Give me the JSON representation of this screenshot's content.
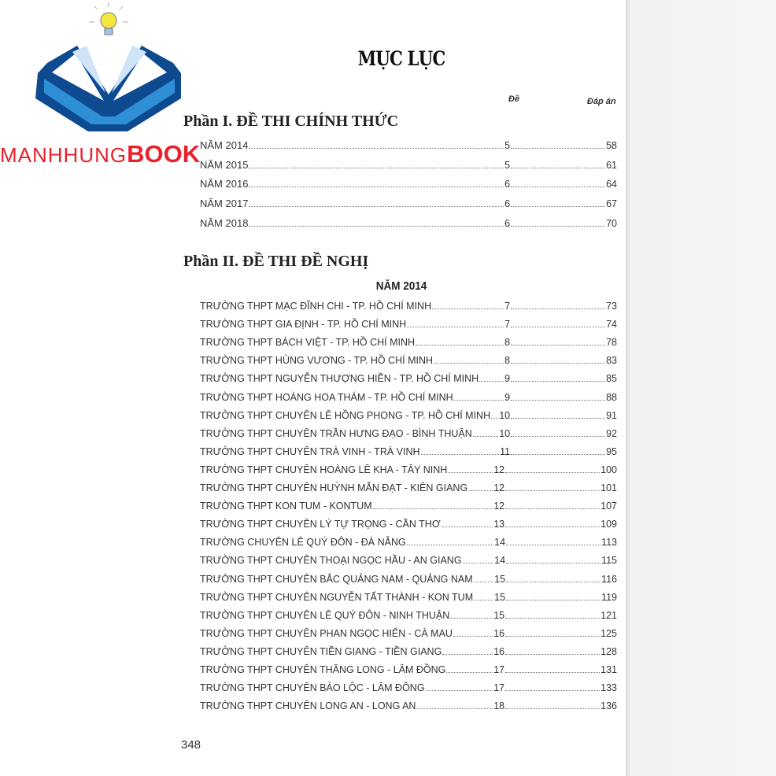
{
  "logo": {
    "text": "MANHHUNGBOOK",
    "part1": "MANHHUNG",
    "part2": "BOOK",
    "colors": {
      "blue_dark": "#0d4a8f",
      "blue_light": "#2f8fd6",
      "red": "#e8222d",
      "bulb": "#f5e642"
    }
  },
  "title": "MỤC LỤC",
  "columns": {
    "de": "Đề",
    "dap_an": "Đáp án"
  },
  "part1": {
    "heading": "Phần I. ĐỀ THI CHÍNH THỨC",
    "rows": [
      {
        "name": "NĂM 2014",
        "de": "5",
        "dap_an": "58"
      },
      {
        "name": "NĂM 2015",
        "de": "5",
        "dap_an": "61"
      },
      {
        "name": "NĂM 2016",
        "de": "6",
        "dap_an": "64"
      },
      {
        "name": "NĂM 2017",
        "de": "6",
        "dap_an": "67"
      },
      {
        "name": "NĂM 2018",
        "de": "6",
        "dap_an": "70"
      }
    ]
  },
  "part2": {
    "heading": "Phần II. ĐỀ THI ĐỀ NGHỊ",
    "year": "NĂM 2014",
    "rows": [
      {
        "name": "TRƯỜNG THPT MẠC ĐĨNH CHI - TP. HỒ CHÍ MINH",
        "de": "7",
        "dap_an": "73"
      },
      {
        "name": "TRƯỜNG THPT GIA ĐỊNH - TP. HỒ CHÍ MINH",
        "de": "7",
        "dap_an": "74"
      },
      {
        "name": "TRƯỜNG THPT BÁCH VIỆT - TP. HỒ CHÍ MINH",
        "de": "8",
        "dap_an": "78"
      },
      {
        "name": "TRƯỜNG THPT HÙNG VƯƠNG - TP. HỒ CHÍ MINH",
        "de": "8",
        "dap_an": "83"
      },
      {
        "name": "TRƯỜNG THPT NGUYỄN THƯỢNG HIỀN - TP. HỒ CHÍ MINH",
        "de": "9",
        "dap_an": "85"
      },
      {
        "name": "TRƯỜNG THPT HOÀNG HOA THÁM - TP. HỒ CHÍ MINH",
        "de": "9",
        "dap_an": "88"
      },
      {
        "name": "TRƯỜNG THPT CHUYÊN LÊ HỒNG PHONG - TP. HỒ CHÍ MINH",
        "de": "10",
        "dap_an": "91"
      },
      {
        "name": "TRƯỜNG THPT CHUYÊN TRẦN HƯNG ĐẠO - BÌNH THUẬN",
        "de": "10",
        "dap_an": "92"
      },
      {
        "name": "TRƯỜNG THPT CHUYÊN TRÀ VINH - TRÀ VINH",
        "de": "11",
        "dap_an": "95"
      },
      {
        "name": "TRƯỜNG THPT CHUYÊN HOÀNG LÊ KHA - TÂY NINH",
        "de": "12",
        "dap_an": "100"
      },
      {
        "name": "TRƯỜNG THPT CHUYÊN HUỲNH MẪN ĐẠT - KIÊN GIANG",
        "de": "12",
        "dap_an": "101"
      },
      {
        "name": "TRƯỜNG THPT KON TUM - KONTUM",
        "de": "12",
        "dap_an": "107"
      },
      {
        "name": "TRƯỜNG THPT CHUYÊN LÝ TỰ TRỌNG - CẦN THƠ",
        "de": "13",
        "dap_an": "109"
      },
      {
        "name": "TRƯỜNG CHUYÊN LÊ QUÝ ĐÔN - ĐÀ NẴNG",
        "de": "14",
        "dap_an": "113"
      },
      {
        "name": "TRƯỜNG THPT CHUYÊN THOẠI NGỌC HẦU - AN GIANG",
        "de": "14",
        "dap_an": "115"
      },
      {
        "name": "TRƯỜNG THPT CHUYÊN BẮC QUẢNG NAM - QUẢNG NAM",
        "de": "15",
        "dap_an": "116"
      },
      {
        "name": "TRƯỜNG THPT CHUYÊN NGUYỄN TẤT THÀNH - KON TUM",
        "de": "15",
        "dap_an": "119"
      },
      {
        "name": "TRƯỜNG THPT CHUYÊN LÊ QUÝ ĐÔN - NINH THUẬN",
        "de": "15",
        "dap_an": "121"
      },
      {
        "name": "TRƯỜNG THPT CHUYÊN PHAN NGỌC HIỂN - CÀ MAU",
        "de": "16",
        "dap_an": "125"
      },
      {
        "name": "TRƯỜNG THPT CHUYÊN TIỀN GIANG - TIỀN GIANG",
        "de": "16",
        "dap_an": "128"
      },
      {
        "name": "TRƯỜNG THPT CHUYÊN THĂNG LONG - LÂM ĐỒNG",
        "de": "17",
        "dap_an": "131"
      },
      {
        "name": "TRƯỜNG THPT CHUYÊN BẢO LỘC - LÂM ĐỒNG",
        "de": "17",
        "dap_an": "133"
      },
      {
        "name": "TRƯỜNG THPT CHUYÊN LONG AN - LONG AN",
        "de": "18",
        "dap_an": "136"
      }
    ]
  },
  "page_number": "348"
}
